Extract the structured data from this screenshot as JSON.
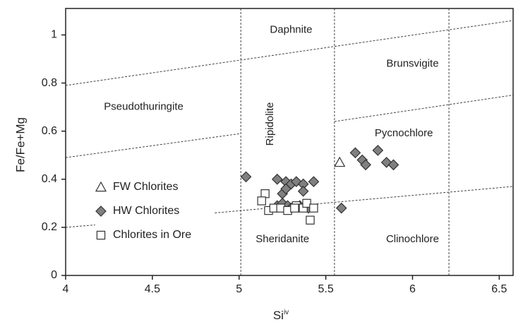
{
  "chart_data": {
    "type": "scatter",
    "xlabel": "Si",
    "xlabel_superscript": "iv",
    "ylabel": "Fe/Fe+Mg",
    "xlim": [
      4,
      6.58
    ],
    "ylim": [
      0,
      1.11
    ],
    "xticks": [
      4,
      4.5,
      5,
      5.5,
      6,
      6.5
    ],
    "yticks": [
      0,
      0.2,
      0.4,
      0.6,
      0.8,
      1
    ],
    "region_labels": [
      "Daphnite",
      "Brunsvigite",
      "Pseudothuringite",
      "Ripidolite",
      "Pycnochlore",
      "Sheridanite",
      "Clinochlore"
    ],
    "boundaries": [
      {
        "x": [
          5.01,
          5.01
        ],
        "y": [
          0,
          1.11
        ]
      },
      {
        "x": [
          5.55,
          5.55
        ],
        "y": [
          0,
          1.11
        ]
      },
      {
        "x": [
          6.21,
          6.21
        ],
        "y": [
          0,
          1.11
        ]
      },
      {
        "x": [
          4,
          6.58
        ],
        "y": [
          0.79,
          1.06
        ]
      },
      {
        "x": [
          4,
          5.01
        ],
        "y": [
          0.49,
          0.59
        ]
      },
      {
        "x": [
          5.55,
          6.58
        ],
        "y": [
          0.64,
          0.75
        ]
      },
      {
        "x": [
          4,
          4.17
        ],
        "y": [
          0.2,
          0.21
        ]
      },
      {
        "x": [
          4.86,
          6.58
        ],
        "y": [
          0.26,
          0.37
        ]
      }
    ],
    "series": [
      {
        "name": "FW Chlorites",
        "marker": "triangle",
        "color": "#ffffff",
        "x": [
          5.58
        ],
        "y": [
          0.47
        ]
      },
      {
        "name": "HW Chlorites",
        "marker": "diamond",
        "color": "#808080",
        "x": [
          5.04,
          5.22,
          5.27,
          5.3,
          5.33,
          5.37,
          5.43,
          5.25,
          5.37,
          5.27,
          5.22,
          5.25,
          5.28,
          5.3,
          5.35,
          5.4,
          5.59,
          5.67,
          5.71,
          5.73,
          5.8,
          5.85,
          5.89
        ],
        "y": [
          0.41,
          0.4,
          0.39,
          0.38,
          0.39,
          0.38,
          0.39,
          0.34,
          0.35,
          0.36,
          0.29,
          0.3,
          0.29,
          0.28,
          0.29,
          0.28,
          0.28,
          0.51,
          0.48,
          0.46,
          0.52,
          0.47,
          0.46
        ]
      },
      {
        "name": "Chlorites in Ore",
        "marker": "square",
        "color": "#ffffff",
        "x": [
          5.15,
          5.13,
          5.17,
          5.2,
          5.24,
          5.28,
          5.33,
          5.37,
          5.39,
          5.41,
          5.43,
          5.32
        ],
        "y": [
          0.34,
          0.31,
          0.27,
          0.28,
          0.28,
          0.27,
          0.29,
          0.28,
          0.3,
          0.23,
          0.28,
          0.28
        ]
      }
    ]
  }
}
